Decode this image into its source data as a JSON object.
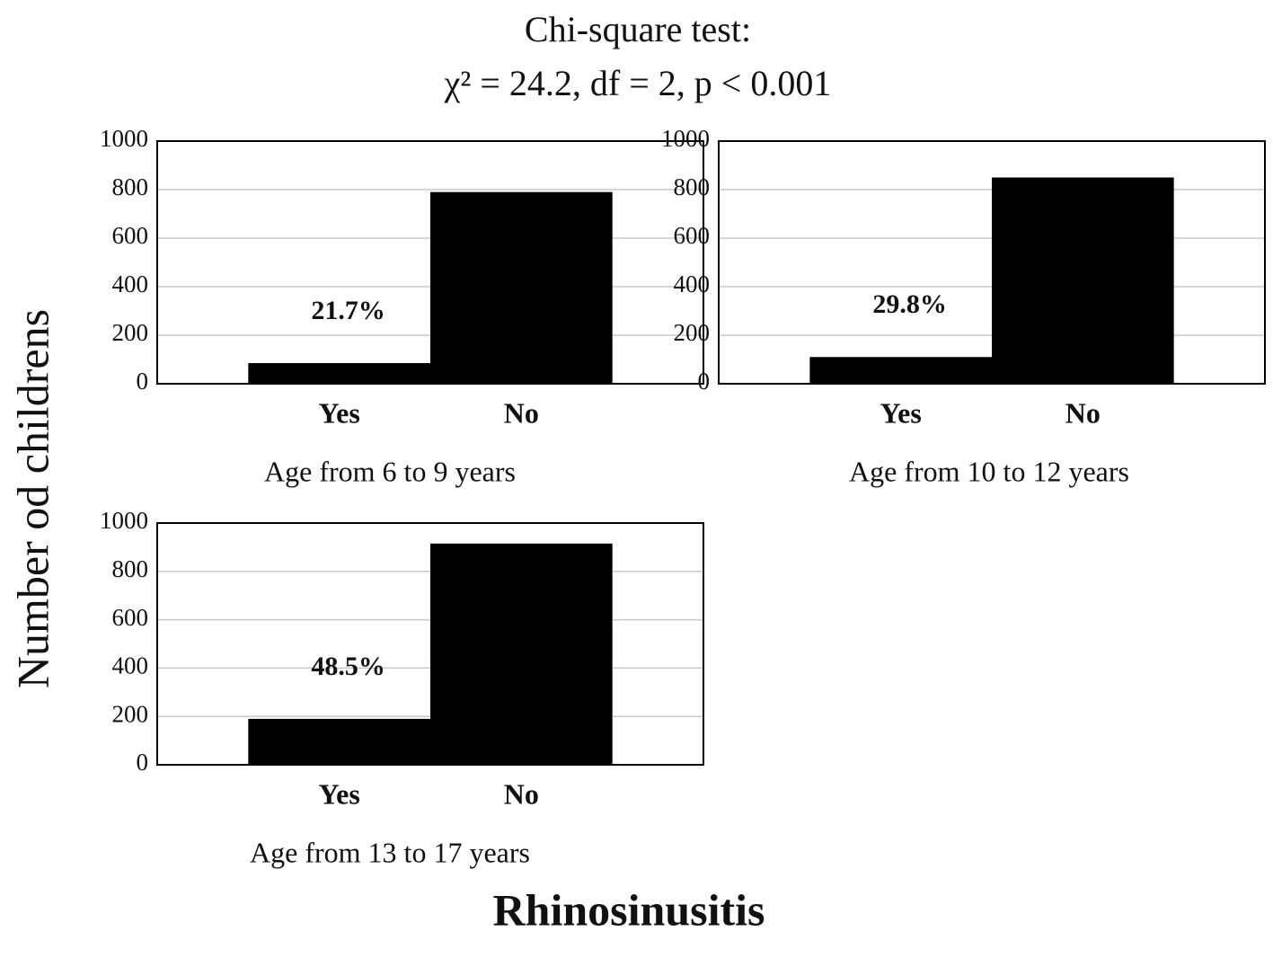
{
  "figure": {
    "title": "Chi-square test:",
    "subtitle": "χ² = 24.2, df = 2, p < 0.001",
    "ylabel": "Number od childrens",
    "xlabel": "Rhinosinusitis"
  },
  "chart_data": [
    {
      "type": "bar",
      "categories": [
        "Yes",
        "No"
      ],
      "values": [
        85,
        790
      ],
      "color": "#000000",
      "annotation": "21.7%",
      "xlabel": "Age from 6 to 9 years",
      "ylim": [
        0,
        1000
      ],
      "yticks": [
        0,
        200,
        400,
        600,
        800,
        1000
      ],
      "grid": true
    },
    {
      "type": "bar",
      "categories": [
        "Yes",
        "No"
      ],
      "values": [
        110,
        850
      ],
      "color": "#000000",
      "annotation": "29.8%",
      "xlabel": "Age from 10 to 12 years",
      "ylim": [
        0,
        1000
      ],
      "yticks": [
        0,
        200,
        400,
        600,
        800,
        1000
      ],
      "grid": true
    },
    {
      "type": "bar",
      "categories": [
        "Yes",
        "No"
      ],
      "values": [
        190,
        915
      ],
      "color": "#000000",
      "annotation": "48.5%",
      "xlabel": "Age from 13 to 17 years",
      "ylim": [
        0,
        1000
      ],
      "yticks": [
        0,
        200,
        400,
        600,
        800,
        1000
      ],
      "grid": true
    }
  ]
}
